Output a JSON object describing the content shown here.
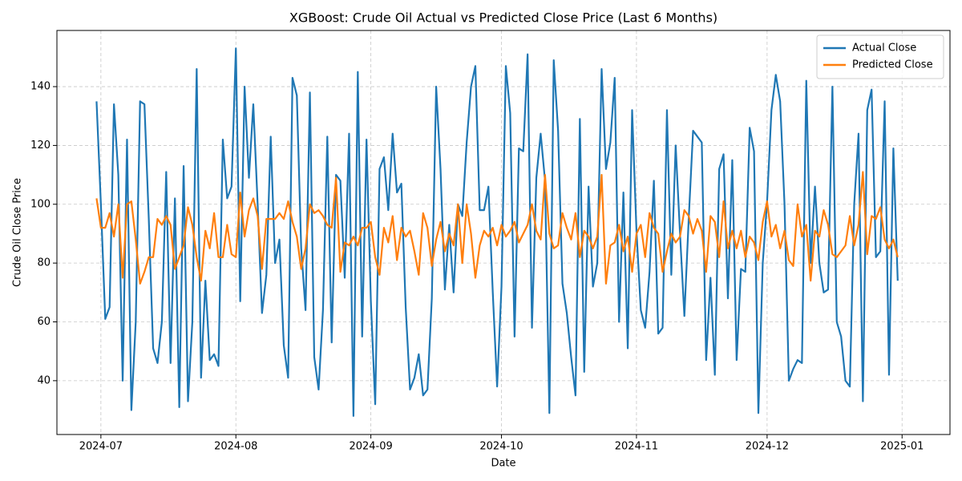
{
  "chart_data": {
    "type": "line",
    "title": "XGBoost: Crude Oil Actual vs Predicted Close Price (Last 6 Months)",
    "xlabel": "Date",
    "ylabel": "Crude Oil Close Price",
    "x": [
      -1,
      0,
      1,
      2,
      3,
      4,
      5,
      6,
      7,
      8,
      9,
      10,
      11,
      12,
      13,
      14,
      15,
      16,
      17,
      18,
      19,
      20,
      21,
      22,
      23,
      24,
      25,
      26,
      27,
      28,
      29,
      30,
      31,
      32,
      33,
      34,
      35,
      36,
      37,
      38,
      39,
      40,
      41,
      42,
      43,
      44,
      45,
      46,
      47,
      48,
      49,
      50,
      51,
      52,
      53,
      54,
      55,
      56,
      57,
      58,
      59,
      60,
      61,
      62,
      63,
      64,
      65,
      66,
      67,
      68,
      69,
      70,
      71,
      72,
      73,
      74,
      75,
      76,
      77,
      78,
      79,
      80,
      81,
      82,
      83,
      84,
      85,
      86,
      87,
      88,
      89,
      90,
      91,
      92,
      93,
      94,
      95,
      96,
      97,
      98,
      99,
      100,
      101,
      102,
      103,
      104,
      105,
      106,
      107,
      108,
      109,
      110,
      111,
      112,
      113,
      114,
      115,
      116,
      117,
      118,
      119,
      120,
      121,
      122,
      123,
      124,
      125,
      126,
      127,
      128,
      129,
      130,
      131,
      132,
      133,
      134,
      135,
      136,
      137,
      138,
      139,
      140,
      141,
      142,
      143,
      144,
      145,
      146,
      147,
      148,
      149,
      150,
      151,
      152,
      153,
      154,
      155,
      156,
      157,
      158,
      159,
      160,
      161,
      162,
      163,
      164,
      165,
      166,
      167,
      168,
      169,
      170,
      171,
      172,
      173,
      174,
      175,
      176,
      177,
      178,
      179,
      180,
      181,
      182,
      183
    ],
    "series": [
      {
        "name": "Actual Close",
        "color": "#1f77b4",
        "values": [
          135,
          100,
          61,
          65,
          134,
          110,
          40,
          122,
          30,
          60,
          135,
          134,
          95,
          51,
          46,
          60,
          111,
          46,
          102,
          31,
          113,
          33,
          60,
          146,
          41,
          74,
          47,
          49,
          45,
          122,
          102,
          106,
          153,
          67,
          140,
          109,
          134,
          100,
          63,
          76,
          123,
          80,
          88,
          52,
          41,
          143,
          137,
          85,
          64,
          138,
          48,
          37,
          64,
          123,
          53,
          110,
          108,
          75,
          124,
          28,
          145,
          55,
          122,
          67,
          32,
          112,
          116,
          98,
          124,
          104,
          107,
          65,
          37,
          41,
          49,
          35,
          37,
          68,
          140,
          112,
          71,
          93,
          70,
          100,
          96,
          121,
          140,
          147,
          98,
          98,
          106,
          70,
          38,
          72,
          147,
          131,
          55,
          119,
          118,
          151,
          58,
          109,
          124,
          108,
          29,
          149,
          125,
          73,
          63,
          48,
          35,
          129,
          43,
          106,
          72,
          80,
          146,
          112,
          121,
          143,
          60,
          104,
          51,
          132,
          91,
          64,
          58,
          77,
          108,
          56,
          58,
          132,
          76,
          120,
          90,
          62,
          95,
          125,
          123,
          121,
          47,
          75,
          42,
          112,
          117,
          68,
          115,
          47,
          78,
          77,
          126,
          118,
          29,
          80,
          101,
          132,
          144,
          135,
          100,
          40,
          44,
          47,
          46,
          142,
          80,
          106,
          80,
          70,
          71,
          140,
          60,
          55,
          40,
          38,
          100,
          124,
          33,
          132,
          139,
          82,
          84,
          135,
          42,
          119,
          74
        ]
      },
      {
        "name": "Predicted Close",
        "color": "#ff7f0e",
        "values": [
          102,
          92,
          92,
          97,
          89,
          100,
          75,
          100,
          101,
          88,
          73,
          77,
          82,
          82,
          95,
          93,
          96,
          93,
          78,
          82,
          86,
          99,
          93,
          82,
          74,
          91,
          85,
          97,
          82,
          82,
          93,
          83,
          82,
          104,
          89,
          98,
          102,
          96,
          78,
          95,
          95,
          95,
          97,
          95,
          101,
          94,
          89,
          78,
          85,
          100,
          97,
          98,
          96,
          93,
          92,
          109,
          77,
          87,
          86,
          89,
          86,
          92,
          92,
          94,
          82,
          76,
          92,
          87,
          96,
          81,
          92,
          89,
          91,
          84,
          76,
          97,
          92,
          79,
          88,
          94,
          84,
          90,
          86,
          100,
          80,
          100,
          90,
          75,
          86,
          91,
          89,
          92,
          86,
          93,
          89,
          91,
          94,
          87,
          90,
          93,
          100,
          91,
          88,
          110,
          90,
          85,
          86,
          97,
          92,
          88,
          97,
          82,
          91,
          89,
          85,
          89,
          110,
          73,
          86,
          87,
          93,
          84,
          89,
          77,
          90,
          93,
          82,
          97,
          92,
          90,
          77,
          84,
          90,
          87,
          89,
          98,
          96,
          90,
          95,
          91,
          77,
          96,
          94,
          82,
          101,
          85,
          91,
          85,
          91,
          82,
          89,
          87,
          81,
          94,
          101,
          89,
          93,
          85,
          91,
          81,
          79,
          100,
          89,
          93,
          74,
          91,
          89,
          98,
          93,
          83,
          82,
          84,
          86,
          96,
          86,
          93,
          111,
          83,
          96,
          95,
          99,
          88,
          85,
          88,
          82
        ]
      }
    ],
    "xlim": [
      -10.1,
      195
    ],
    "xticks": [
      {
        "value": 0,
        "label": "2024-07"
      },
      {
        "value": 31,
        "label": "2024-08"
      },
      {
        "value": 62,
        "label": "2024-09"
      },
      {
        "value": 92,
        "label": "2024-10"
      },
      {
        "value": 123,
        "label": "2024-11"
      },
      {
        "value": 153,
        "label": "2024-12"
      },
      {
        "value": 184,
        "label": "2025-01"
      }
    ],
    "ylim": [
      21.7,
      159.1
    ],
    "yticks": [
      40,
      60,
      80,
      100,
      120,
      140
    ],
    "grid": true,
    "legend": "upper right"
  }
}
